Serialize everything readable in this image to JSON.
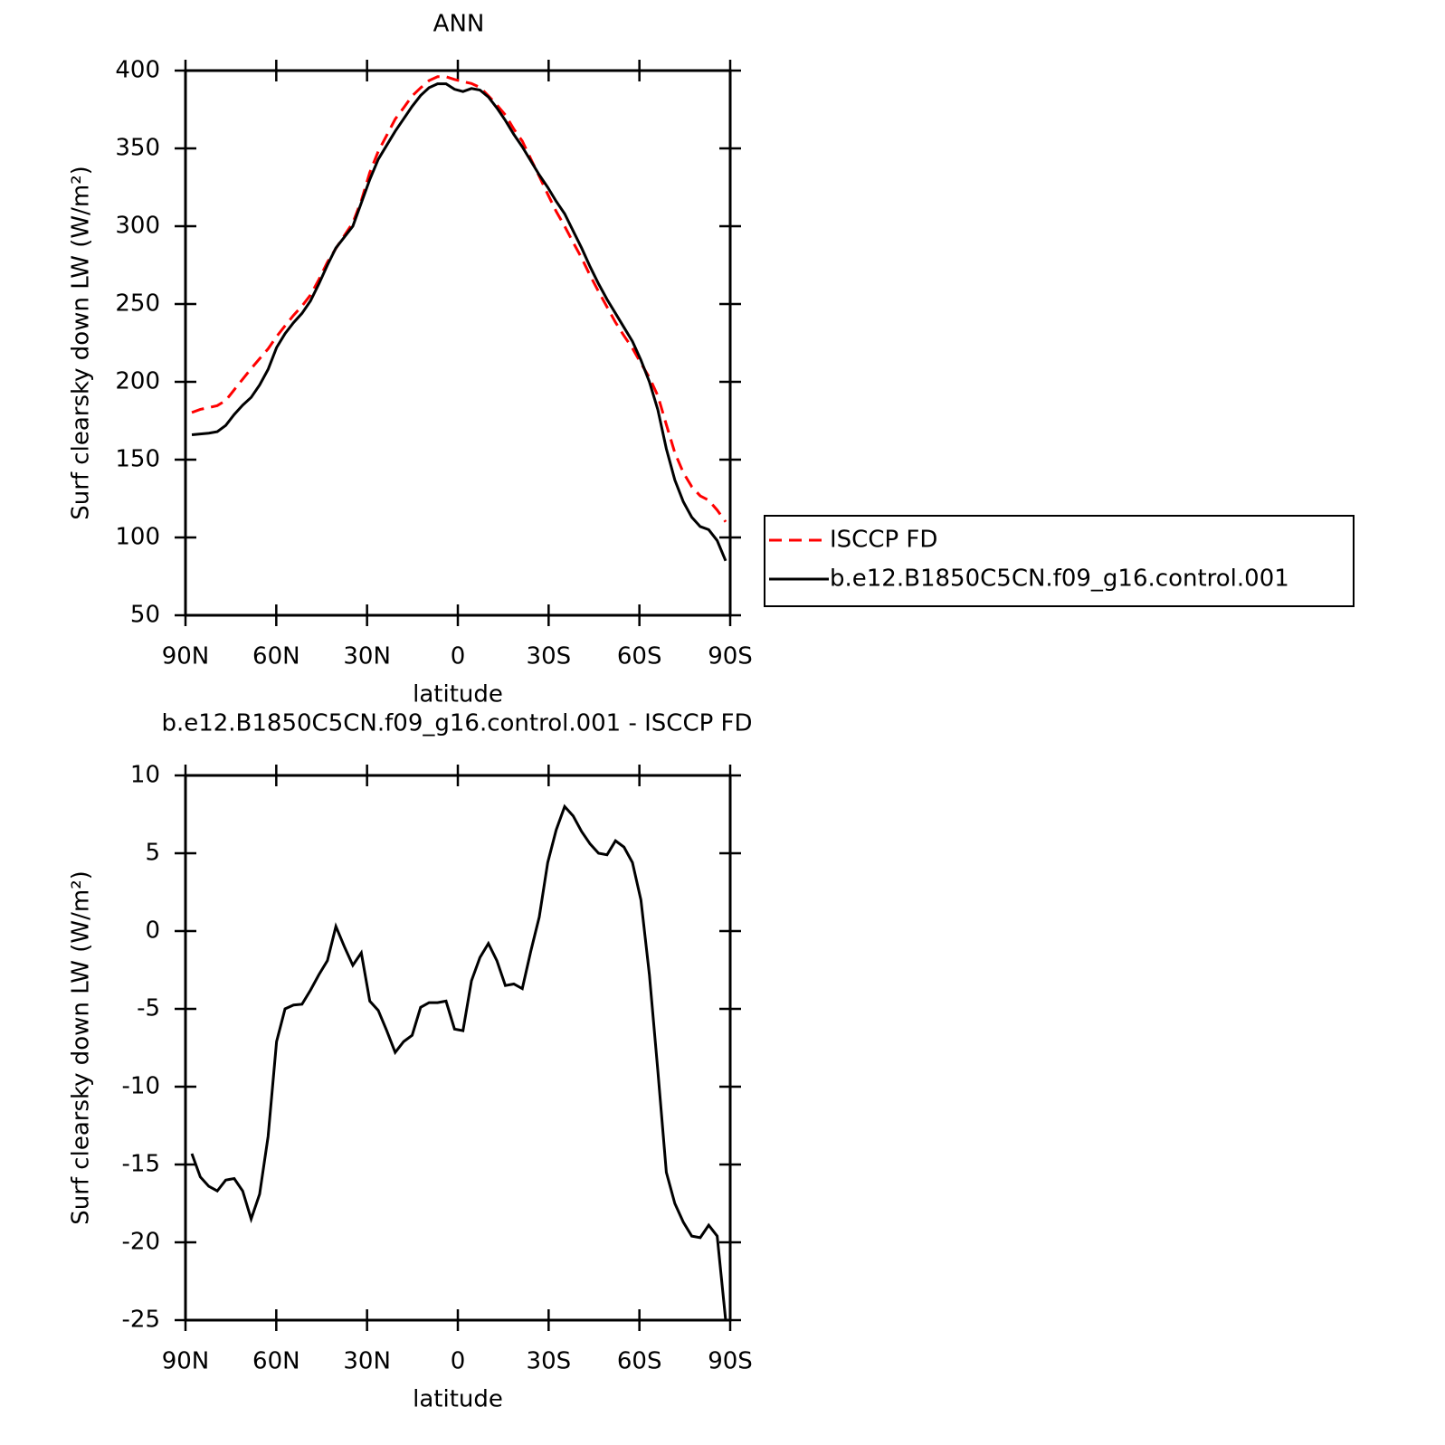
{
  "chart_data": [
    {
      "type": "line",
      "title": "ANN",
      "xlabel": "latitude",
      "ylabel": "Surf clearsky down LW (W/m²)",
      "xlim": [
        90,
        -90
      ],
      "xticks": [
        {
          "value": 90,
          "label": "90N"
        },
        {
          "value": 60,
          "label": "60N"
        },
        {
          "value": 30,
          "label": "30N"
        },
        0,
        {
          "value": -30,
          "label": "30S"
        },
        {
          "value": -60,
          "label": "60S"
        },
        {
          "value": -90,
          "label": "90S"
        }
      ],
      "ylim": [
        50,
        400
      ],
      "yticks": [
        50,
        100,
        150,
        200,
        250,
        300,
        350,
        400
      ],
      "legend_loc": "right",
      "x": [
        87.9,
        85.1,
        82.3,
        79.5,
        76.7,
        73.9,
        71.1,
        68.3,
        65.5,
        62.7,
        59.9,
        57.1,
        54.3,
        51.5,
        48.7,
        45.9,
        43.1,
        40.3,
        37.5,
        34.7,
        31.9,
        29.1,
        26.3,
        23.5,
        20.7,
        17.9,
        15.1,
        12.3,
        9.5,
        6.7,
        3.9,
        1.1,
        -1.7,
        -4.5,
        -7.3,
        -10.1,
        -12.9,
        -15.7,
        -18.5,
        -21.3,
        -24.1,
        -26.9,
        -29.7,
        -32.5,
        -35.3,
        -38.1,
        -40.9,
        -43.7,
        -46.5,
        -49.3,
        -52.1,
        -54.9,
        -57.7,
        -60.5,
        -63.3,
        -66.1,
        -68.9,
        -71.7,
        -74.5,
        -77.3,
        -80.1,
        -82.9,
        -85.7,
        -88.5
      ],
      "series": [
        {
          "name": "ISCCP FD",
          "color": "#ff0000",
          "dash": true,
          "values": [
            180.3,
            182.3,
            183.4,
            184.7,
            188,
            194.9,
            201.7,
            208.5,
            214.9,
            221.2,
            229.1,
            236,
            242.75,
            248.7,
            255.8,
            265.8,
            276.9,
            285.7,
            294,
            302.2,
            316.4,
            334.5,
            348.1,
            358.4,
            368.8,
            376.1,
            383.7,
            388.9,
            393.6,
            396.1,
            396,
            394.3,
            392.9,
            391.7,
            389.2,
            383.8,
            377.9,
            371.5,
            362.4,
            354.7,
            343.3,
            332.1,
            320.6,
            309.5,
            300,
            289.6,
            279.6,
            268.4,
            258,
            248.1,
            238.2,
            229.6,
            221.6,
            212,
            202.8,
            191,
            172.5,
            154.5,
            141.7,
            132.6,
            126.7,
            123.9,
            117.6,
            110
          ]
        },
        {
          "name": "b.e12.B1850C5CN.f09_g16.control.001",
          "color": "#000000",
          "dash": false,
          "values": [
            166,
            166.5,
            167,
            168,
            172,
            179,
            185,
            190,
            198,
            208,
            222,
            231,
            238,
            244,
            252,
            263,
            275,
            286,
            293,
            300,
            315,
            330,
            343,
            352,
            361,
            369,
            377,
            384,
            389,
            391.5,
            391.5,
            388,
            386.5,
            388.5,
            387.5,
            383,
            376,
            368,
            359,
            351,
            342,
            333,
            325,
            316,
            308,
            297,
            286,
            274,
            263,
            253,
            244,
            235,
            226,
            214,
            200,
            182,
            157,
            137,
            123,
            113,
            107,
            105,
            98,
            85
          ]
        }
      ]
    },
    {
      "type": "line",
      "title": "b.e12.B1850C5CN.f09_g16.control.001 - ISCCP FD",
      "xlabel": "latitude",
      "ylabel": "Surf clearsky down LW (W/m²)",
      "xlim": [
        90,
        -90
      ],
      "xticks": [
        {
          "value": 90,
          "label": "90N"
        },
        {
          "value": 60,
          "label": "60N"
        },
        {
          "value": 30,
          "label": "30N"
        },
        0,
        {
          "value": -30,
          "label": "30S"
        },
        {
          "value": -60,
          "label": "60S"
        },
        {
          "value": -90,
          "label": "90S"
        }
      ],
      "ylim": [
        -25,
        10
      ],
      "yticks": [
        -25,
        -20,
        -15,
        -10,
        -5,
        0,
        5,
        10
      ],
      "x": [
        87.9,
        85.1,
        82.3,
        79.5,
        76.7,
        73.9,
        71.1,
        68.3,
        65.5,
        62.7,
        59.9,
        57.1,
        54.3,
        51.5,
        48.7,
        45.9,
        43.1,
        40.3,
        37.5,
        34.7,
        31.9,
        29.1,
        26.3,
        23.5,
        20.7,
        17.9,
        15.1,
        12.3,
        9.5,
        6.7,
        3.9,
        1.1,
        -1.7,
        -4.5,
        -7.3,
        -10.1,
        -12.9,
        -15.7,
        -18.5,
        -21.3,
        -24.1,
        -26.9,
        -29.7,
        -32.5,
        -35.3,
        -38.1,
        -40.9,
        -43.7,
        -46.5,
        -49.3,
        -52.1,
        -54.9,
        -57.7,
        -60.5,
        -63.3,
        -66.1,
        -68.9,
        -71.7,
        -74.5,
        -77.3,
        -80.1,
        -82.9,
        -85.7,
        -88.5
      ],
      "color": "#000000",
      "values": [
        -14.3,
        -15.8,
        -16.4,
        -16.7,
        -16,
        -15.9,
        -16.7,
        -18.5,
        -16.9,
        -13.2,
        -7.1,
        -5,
        -4.75,
        -4.7,
        -3.8,
        -2.8,
        -1.9,
        0.3,
        -1,
        -2.2,
        -1.4,
        -4.5,
        -5.1,
        -6.4,
        -7.8,
        -7.1,
        -6.7,
        -4.9,
        -4.6,
        -4.6,
        -4.5,
        -6.3,
        -6.4,
        -3.2,
        -1.7,
        -0.8,
        -1.9,
        -3.5,
        -3.4,
        -3.7,
        -1.3,
        0.9,
        4.4,
        6.5,
        8,
        7.4,
        6.4,
        5.6,
        5,
        4.9,
        5.8,
        5.4,
        4.4,
        2,
        -2.8,
        -9,
        -15.5,
        -17.5,
        -18.7,
        -19.6,
        -19.7,
        -18.9,
        -19.6,
        -25
      ]
    }
  ]
}
